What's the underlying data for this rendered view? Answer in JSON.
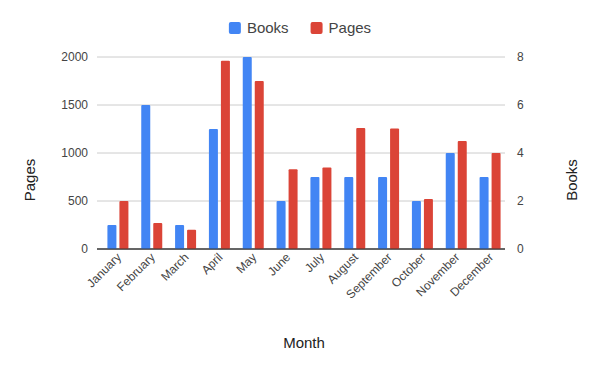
{
  "chart_data": {
    "type": "bar",
    "x_label": "Month",
    "y_label": "Pages",
    "y2_label": "Books",
    "categories": [
      "January",
      "February",
      "March",
      "April",
      "May",
      "June",
      "July",
      "August",
      "September",
      "October",
      "November",
      "December"
    ],
    "series": [
      {
        "name": "Books",
        "color": "#4285f4",
        "axis": "y2",
        "values": [
          1,
          6,
          1,
          5,
          8,
          2,
          3,
          3,
          3,
          2,
          4,
          3
        ]
      },
      {
        "name": "Pages",
        "color": "#db4437",
        "values": [
          500,
          270,
          200,
          1960,
          1750,
          830,
          850,
          1260,
          1255,
          520,
          1125,
          1000
        ]
      }
    ],
    "ylim": [
      0,
      2000
    ],
    "yticks": [
      0,
      500,
      1000,
      1500,
      2000
    ],
    "y2lim": [
      0,
      8
    ],
    "y2ticks": [
      0,
      2,
      4,
      6,
      8
    ],
    "grid": true,
    "legend": "top"
  }
}
